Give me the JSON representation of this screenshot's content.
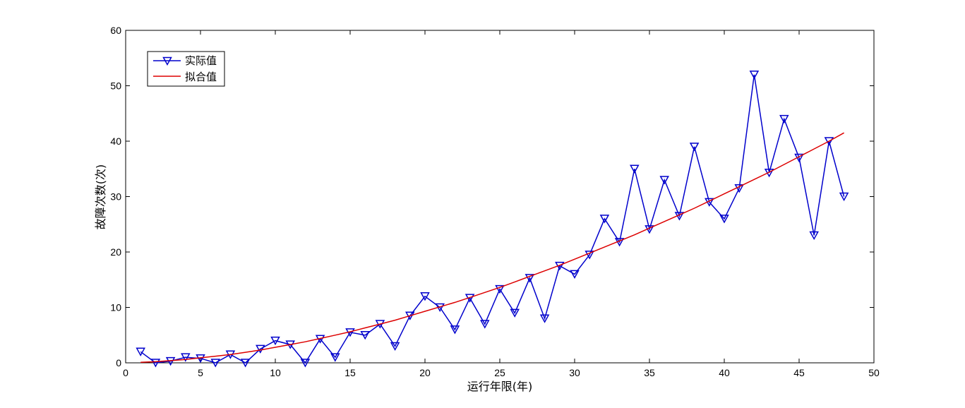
{
  "chart_data": {
    "type": "line",
    "xlabel": "运行年限(年)",
    "ylabel": "故障次数(次)",
    "xlim": [
      0,
      50
    ],
    "ylim": [
      0,
      60
    ],
    "xticks": [
      0,
      5,
      10,
      15,
      20,
      25,
      30,
      35,
      40,
      45,
      50
    ],
    "yticks": [
      0,
      10,
      20,
      30,
      40,
      50,
      60
    ],
    "grid": false,
    "legend_position": "top-left",
    "series": [
      {
        "name": "实际值",
        "color": "#0000cc",
        "marker": "down-triangle",
        "x": [
          1,
          2,
          3,
          4,
          5,
          6,
          7,
          8,
          9,
          10,
          11,
          12,
          13,
          14,
          15,
          16,
          17,
          18,
          19,
          20,
          21,
          22,
          23,
          24,
          25,
          26,
          27,
          28,
          29,
          30,
          31,
          32,
          33,
          34,
          35,
          36,
          37,
          38,
          39,
          40,
          41,
          42,
          43,
          44,
          45,
          46,
          47,
          48
        ],
        "y": [
          2,
          0,
          0.3,
          1,
          0.8,
          0,
          1.5,
          0,
          2.5,
          4,
          3.3,
          0,
          4.3,
          1,
          5.5,
          5,
          7,
          3,
          8.5,
          12,
          10,
          6,
          11.7,
          7,
          13.3,
          9,
          15.3,
          8,
          17.5,
          16,
          19.5,
          26,
          21.8,
          35,
          24.1,
          33,
          26.5,
          39,
          29,
          26,
          31.5,
          52,
          34.3,
          44,
          37,
          23,
          40,
          30
        ]
      },
      {
        "name": "拟合值",
        "color": "#dd0000",
        "x": [
          1,
          2,
          3,
          4,
          5,
          6,
          7,
          8,
          9,
          10,
          11,
          12,
          13,
          14,
          15,
          16,
          17,
          18,
          19,
          20,
          21,
          22,
          23,
          24,
          25,
          26,
          27,
          28,
          29,
          30,
          31,
          32,
          33,
          34,
          35,
          36,
          37,
          38,
          39,
          40,
          41,
          42,
          43,
          44,
          45,
          46,
          47,
          48
        ],
        "y": [
          0.1,
          0.2,
          0.4,
          0.6,
          0.9,
          1.2,
          1.5,
          1.9,
          2.3,
          2.8,
          3.3,
          3.8,
          4.4,
          5.0,
          5.6,
          6.3,
          7.0,
          7.7,
          8.5,
          9.3,
          10.1,
          10.9,
          11.8,
          12.7,
          13.6,
          14.6,
          15.6,
          16.6,
          17.6,
          18.7,
          19.8,
          20.9,
          22.0,
          23.1,
          24.3,
          25.5,
          26.7,
          27.9,
          29.2,
          30.5,
          31.8,
          33.1,
          34.4,
          35.8,
          37.2,
          38.6,
          40.0,
          41.5
        ]
      }
    ]
  }
}
